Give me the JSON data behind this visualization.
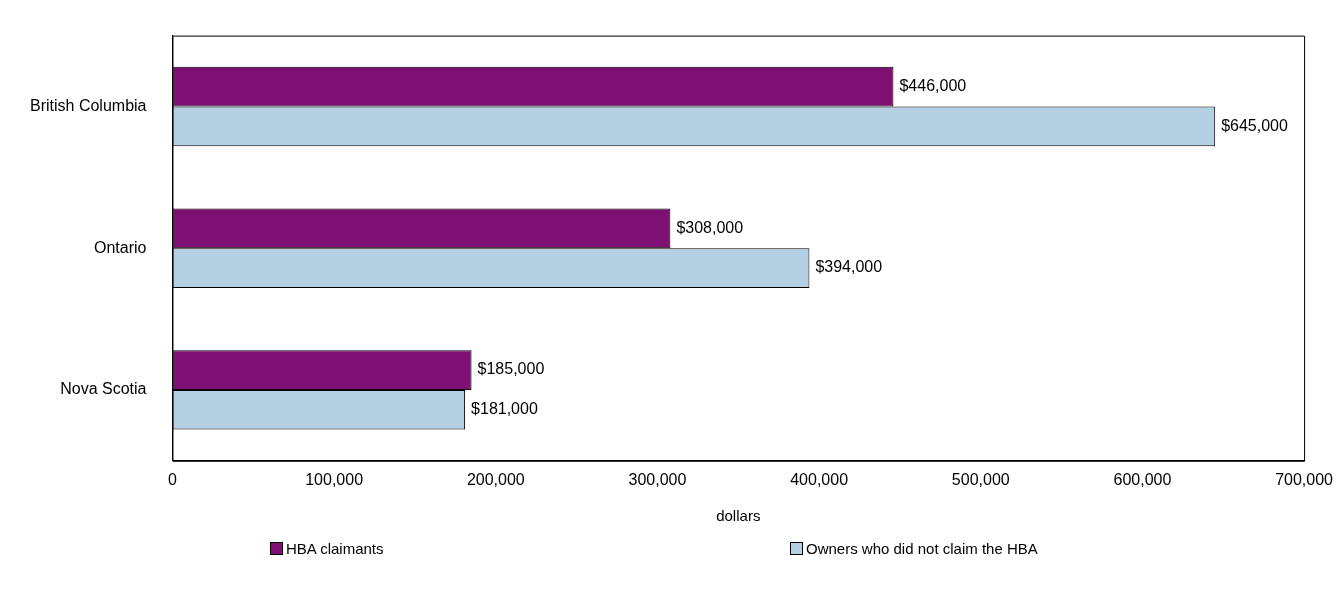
{
  "chart_data": {
    "type": "bar",
    "orientation": "horizontal",
    "xlabel": "dollars",
    "categories": [
      "British Columbia",
      "Ontario",
      "Nova Scotia"
    ],
    "series": [
      {
        "name": "HBA claimants",
        "color": "#7e1073",
        "values": [
          446000,
          308000,
          185000
        ],
        "value_labels": [
          "$446,000",
          "$308,000",
          "$185,000"
        ]
      },
      {
        "name": "Owners who did not claim the HBA",
        "color": "#b5cfe3",
        "values": [
          645000,
          394000,
          181000
        ],
        "value_labels": [
          "$645,000",
          "$394,000",
          "$181,000"
        ]
      }
    ],
    "xlim": [
      0,
      700000
    ],
    "xticks": [
      {
        "value": 0,
        "label": "0"
      },
      {
        "value": 100000,
        "label": "100,000"
      },
      {
        "value": 200000,
        "label": "200,000"
      },
      {
        "value": 300000,
        "label": "300,000"
      },
      {
        "value": 400000,
        "label": "400,000"
      },
      {
        "value": 500000,
        "label": "500,000"
      },
      {
        "value": 600000,
        "label": "600,000"
      },
      {
        "value": 700000,
        "label": "700,000"
      }
    ],
    "grid": false,
    "legend": "bottom"
  }
}
